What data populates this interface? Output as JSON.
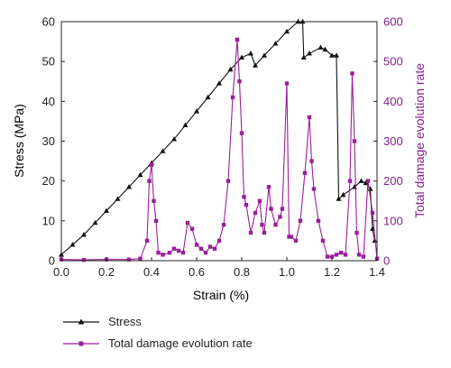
{
  "chart_data": {
    "type": "line",
    "xlabel": "Strain (%)",
    "ylabel_left": "Stress (MPa)",
    "ylabel_right": "Total damage evolution rate",
    "xlim": [
      0.0,
      1.4
    ],
    "ylim_left": [
      0,
      60
    ],
    "ylim_right": [
      0,
      600
    ],
    "x_ticks": [
      "0.0",
      "0.2",
      "0.4",
      "0.6",
      "0.8",
      "1.0",
      "1.2",
      "1.4"
    ],
    "y_left_ticks": [
      "0",
      "10",
      "20",
      "30",
      "40",
      "50",
      "60"
    ],
    "y_right_ticks": [
      "0",
      "100",
      "200",
      "300",
      "400",
      "500",
      "600"
    ],
    "grid": false,
    "legend_position": "bottom-left",
    "colors": {
      "stress": "#111111",
      "damage": "#9b1f9b",
      "right_axis": "#8a1f8a"
    },
    "series": [
      {
        "name": "Stress",
        "axis": "left",
        "marker": "triangle",
        "x": [
          0.0,
          0.05,
          0.1,
          0.15,
          0.2,
          0.25,
          0.3,
          0.35,
          0.4,
          0.45,
          0.5,
          0.55,
          0.6,
          0.65,
          0.7,
          0.75,
          0.8,
          0.84,
          0.86,
          0.9,
          0.95,
          1.0,
          1.05,
          1.07,
          1.075,
          1.1,
          1.15,
          1.17,
          1.2,
          1.22,
          1.23,
          1.25,
          1.3,
          1.33,
          1.35,
          1.37,
          1.38,
          1.39
        ],
        "values": [
          1.5,
          4.0,
          6.5,
          9.5,
          12.5,
          15.5,
          18.5,
          21.5,
          24.5,
          27.5,
          30.5,
          34.0,
          37.5,
          41.0,
          44.5,
          48.0,
          51.0,
          52.0,
          49.0,
          51.5,
          54.5,
          57.5,
          60.0,
          60.0,
          51.0,
          52.0,
          53.5,
          53.0,
          51.5,
          51.5,
          15.5,
          16.5,
          18.5,
          20.0,
          19.5,
          18.0,
          8.0,
          5.0
        ]
      },
      {
        "name": "Total damage evolution rate",
        "axis": "right",
        "marker": "square",
        "x": [
          0.0,
          0.1,
          0.2,
          0.3,
          0.35,
          0.38,
          0.39,
          0.4,
          0.41,
          0.42,
          0.43,
          0.45,
          0.48,
          0.5,
          0.52,
          0.54,
          0.56,
          0.58,
          0.6,
          0.62,
          0.64,
          0.66,
          0.68,
          0.7,
          0.72,
          0.74,
          0.76,
          0.78,
          0.79,
          0.8,
          0.81,
          0.82,
          0.84,
          0.86,
          0.88,
          0.89,
          0.9,
          0.92,
          0.93,
          0.95,
          0.97,
          0.98,
          1.0,
          1.01,
          1.02,
          1.04,
          1.06,
          1.08,
          1.1,
          1.11,
          1.12,
          1.14,
          1.16,
          1.18,
          1.2,
          1.22,
          1.24,
          1.26,
          1.28,
          1.29,
          1.3,
          1.31,
          1.32,
          1.34,
          1.36,
          1.38,
          1.4
        ],
        "values": [
          3,
          2,
          3,
          3,
          5,
          50,
          200,
          240,
          150,
          100,
          20,
          15,
          20,
          30,
          25,
          20,
          95,
          80,
          40,
          30,
          20,
          35,
          30,
          50,
          90,
          200,
          410,
          555,
          450,
          320,
          160,
          140,
          70,
          120,
          150,
          90,
          70,
          185,
          130,
          90,
          110,
          130,
          445,
          60,
          60,
          50,
          100,
          220,
          360,
          250,
          180,
          100,
          50,
          10,
          10,
          15,
          20,
          15,
          200,
          470,
          300,
          70,
          15,
          10,
          200,
          120,
          5
        ]
      }
    ]
  }
}
